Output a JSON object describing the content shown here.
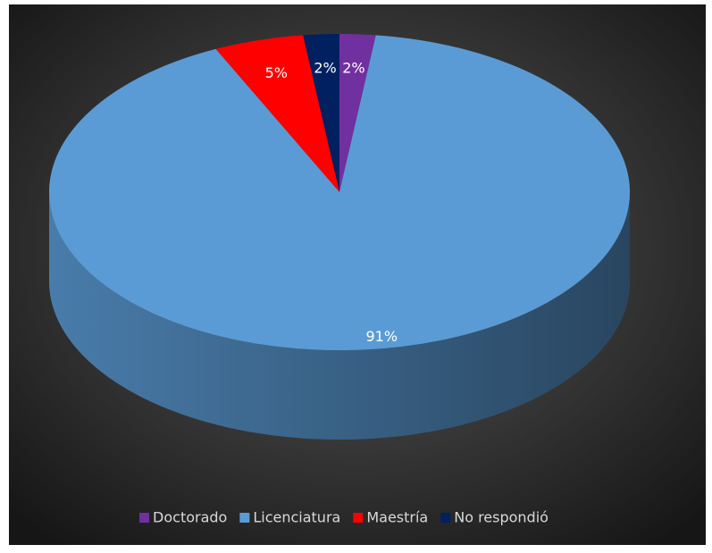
{
  "chart_data": {
    "type": "pie",
    "categories": [
      "Doctorado",
      "Licenciatura",
      "Maestría",
      "No respondió"
    ],
    "values": [
      2,
      91,
      5,
      2
    ],
    "value_labels": [
      "2%",
      "91%",
      "5%",
      "2%"
    ],
    "colors": [
      "#7030a0",
      "#5b9bd5",
      "#ff0000",
      "#002060"
    ],
    "legend": "bottom"
  }
}
